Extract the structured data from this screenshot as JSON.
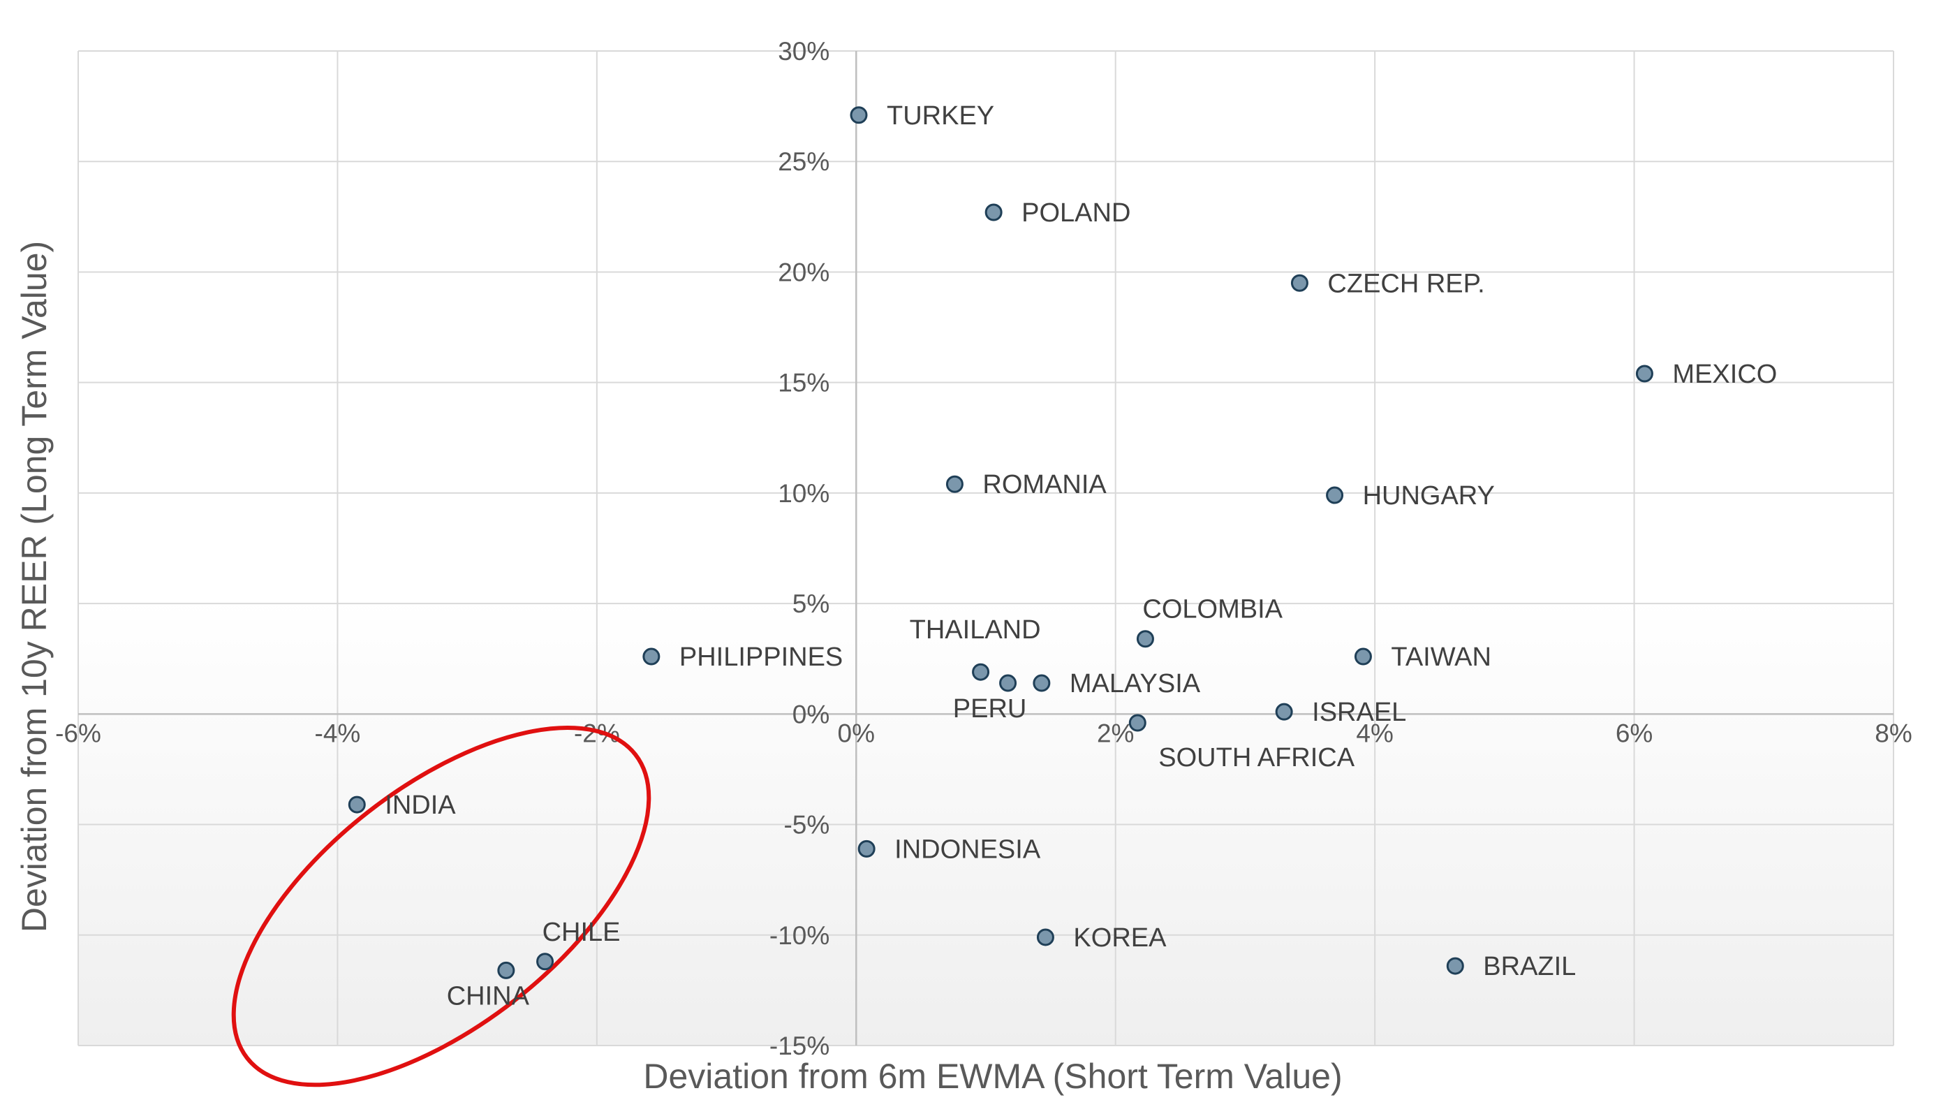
{
  "chart_data": {
    "type": "scatter",
    "title": "",
    "xlabel": "Deviation from 6m EWMA (Short Term Value)",
    "ylabel": "Deviation from 10y REER (Long Term Value)",
    "xlim": [
      -6,
      8
    ],
    "ylim": [
      -15,
      30
    ],
    "x_ticks": [
      -6,
      -4,
      -2,
      0,
      2,
      4,
      6,
      8
    ],
    "y_ticks": [
      -15,
      -10,
      -5,
      0,
      5,
      10,
      15,
      20,
      25,
      30
    ],
    "x_tick_labels": [
      "-6%",
      "-4%",
      "-2%",
      "0%",
      "2%",
      "4%",
      "6%",
      "8%"
    ],
    "y_tick_labels": [
      "-15%",
      "-10%",
      "-5%",
      "0%",
      "5%",
      "10%",
      "15%",
      "20%",
      "25%",
      "30%"
    ],
    "grid": true,
    "units": "%",
    "marker_color": "#7b97ac",
    "marker_edge_color": "#1f3f57",
    "highlight_color": "#e01010",
    "points": [
      {
        "label": "TURKEY",
        "x": 0.02,
        "y": 27.1,
        "label_pos": "right"
      },
      {
        "label": "POLAND",
        "x": 1.06,
        "y": 22.7,
        "label_pos": "right"
      },
      {
        "label": "CZECH REP.",
        "x": 3.42,
        "y": 19.5,
        "label_pos": "right"
      },
      {
        "label": "MEXICO",
        "x": 6.08,
        "y": 15.4,
        "label_pos": "right"
      },
      {
        "label": "ROMANIA",
        "x": 0.76,
        "y": 10.4,
        "label_pos": "right"
      },
      {
        "label": "HUNGARY",
        "x": 3.69,
        "y": 9.9,
        "label_pos": "right"
      },
      {
        "label": "COLOMBIA",
        "x": 2.23,
        "y": 3.4,
        "label_pos": "above-right"
      },
      {
        "label": "PHILIPPINES",
        "x": -1.58,
        "y": 2.6,
        "label_pos": "right"
      },
      {
        "label": "TAIWAN",
        "x": 3.91,
        "y": 2.6,
        "label_pos": "right"
      },
      {
        "label": "THAILAND",
        "x": 0.96,
        "y": 1.9,
        "label_pos": "above-left"
      },
      {
        "label": "PERU",
        "x": 1.17,
        "y": 1.4,
        "label_pos": "below-left"
      },
      {
        "label": "MALAYSIA",
        "x": 1.43,
        "y": 1.4,
        "label_pos": "right"
      },
      {
        "label": "ISRAEL",
        "x": 3.3,
        "y": 0.1,
        "label_pos": "right"
      },
      {
        "label": "SOUTH AFRICA",
        "x": 2.17,
        "y": -0.4,
        "label_pos": "below-right"
      },
      {
        "label": "INDIA",
        "x": -3.85,
        "y": -4.1,
        "label_pos": "right"
      },
      {
        "label": "INDONESIA",
        "x": 0.08,
        "y": -6.1,
        "label_pos": "right"
      },
      {
        "label": "KOREA",
        "x": 1.46,
        "y": -10.1,
        "label_pos": "right"
      },
      {
        "label": "BRAZIL",
        "x": 4.62,
        "y": -11.4,
        "label_pos": "right"
      },
      {
        "label": "CHILE",
        "x": -2.4,
        "y": -11.2,
        "label_pos": "above-right"
      },
      {
        "label": "CHINA",
        "x": -2.7,
        "y": -11.6,
        "label_pos": "below-left"
      }
    ],
    "highlight_ellipse": {
      "cx": -3.2,
      "cy": -8.7,
      "rx_data": 1.9,
      "ry_data": 5.4,
      "angle": -38
    }
  }
}
